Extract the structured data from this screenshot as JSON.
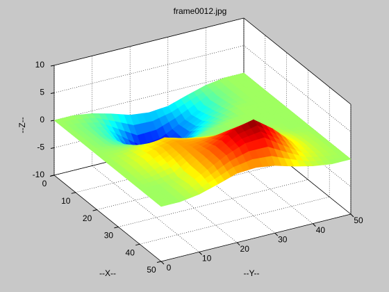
{
  "chart_data": {
    "type": "surface",
    "title": "frame0012.jpg",
    "x_label": "--X--",
    "y_label": "--Y--",
    "z_label": "--Z--",
    "x": [
      0,
      5,
      10,
      15,
      20,
      25,
      30,
      35,
      40,
      45,
      50
    ],
    "y": [
      0,
      5,
      10,
      15,
      20,
      25,
      30,
      35,
      40,
      45,
      50
    ],
    "z": [
      [
        0,
        0,
        -0.5,
        -1.4,
        -2.5,
        -2.9,
        -2.6,
        -1.5,
        -0.5,
        0,
        0
      ],
      [
        0,
        -0.5,
        -1.4,
        -4,
        -6.5,
        -6.1,
        -4.4,
        -2.6,
        -0.8,
        0,
        0
      ],
      [
        0,
        -0.5,
        -2,
        -5.7,
        -8.5,
        -7.2,
        -4.1,
        -2,
        -0.5,
        0,
        0
      ],
      [
        0,
        -0.5,
        -1.4,
        -4,
        -5.7,
        -4.5,
        -2.2,
        -1,
        0,
        0,
        0
      ],
      [
        0,
        0,
        0,
        -0.6,
        -1.5,
        -1.4,
        -0.5,
        0,
        0,
        0,
        0
      ],
      [
        0,
        0.5,
        1.5,
        2.1,
        1.1,
        0.5,
        0,
        0,
        0,
        0,
        0
      ],
      [
        0,
        0.8,
        2.1,
        3,
        2.6,
        2.1,
        1.8,
        1.3,
        0.5,
        0,
        0
      ],
      [
        0,
        0.5,
        1.5,
        3,
        3.6,
        4.5,
        5,
        3.5,
        1.3,
        0.4,
        0
      ],
      [
        0,
        0,
        0.5,
        2.8,
        4.4,
        6.5,
        7.5,
        5,
        1.8,
        0.5,
        0
      ],
      [
        0,
        0,
        0.8,
        2.5,
        4.3,
        5.6,
        5.8,
        3.5,
        1.3,
        0.4,
        0
      ],
      [
        0,
        0,
        0.5,
        1.5,
        2.6,
        2.8,
        2.3,
        1.3,
        0.5,
        0,
        0
      ]
    ],
    "xlim": [
      0,
      50
    ],
    "ylim": [
      0,
      50
    ],
    "zlim": [
      -10,
      10
    ],
    "xticks": [
      0,
      10,
      20,
      30,
      40,
      50
    ],
    "yticks": [
      0,
      10,
      20,
      30,
      40,
      50
    ],
    "zticks": [
      -10,
      -5,
      0,
      5,
      10
    ],
    "colormap": "jet",
    "grid": true
  }
}
